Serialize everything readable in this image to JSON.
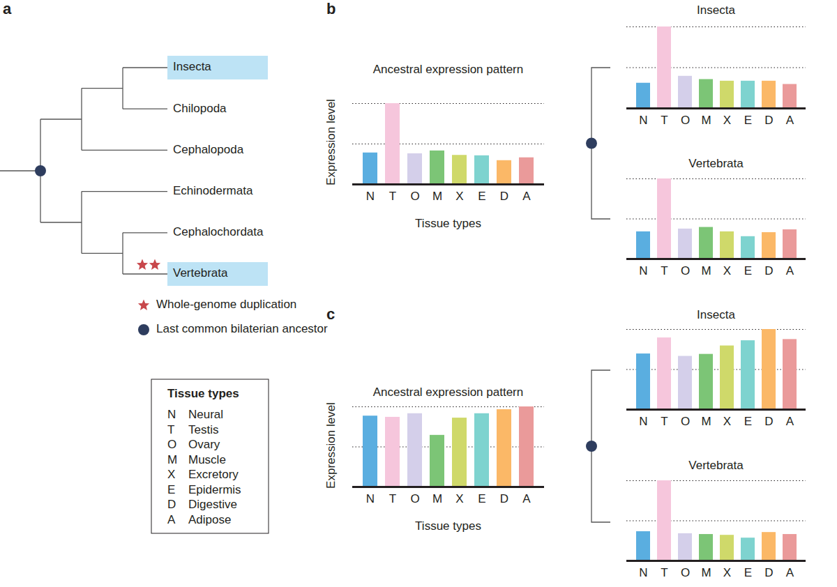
{
  "panel_labels": [
    "a",
    "b",
    "c"
  ],
  "tree": {
    "marker": "circle",
    "children": [
      {
        "children": [
          {
            "children": [
              {
                "label": "Insecta",
                "highlight": true
              },
              {
                "label": "Chilopoda"
              }
            ]
          },
          {
            "label": "Cephalopoda"
          }
        ]
      },
      {
        "children": [
          {
            "label": "Echinodermata"
          },
          {
            "children": [
              {
                "label": "Cephalochordata"
              },
              {
                "label": "Vertebrata",
                "highlight": true,
                "whole_genome_duplications": 2
              }
            ]
          }
        ]
      }
    ]
  },
  "tree_legend": [
    {
      "marker": "star",
      "label": "Whole-genome duplication"
    },
    {
      "marker": "circle",
      "label": "Last common bilaterian ancestor"
    }
  ],
  "tissue_legend": {
    "title": "Tissue types",
    "rows": [
      [
        "N",
        "Neural"
      ],
      [
        "T",
        "Testis"
      ],
      [
        "O",
        "Ovary"
      ],
      [
        "M",
        "Muscle"
      ],
      [
        "X",
        "Excretory"
      ],
      [
        "E",
        "Epidermis"
      ],
      [
        "D",
        "Digestive"
      ],
      [
        "A",
        "Adipose"
      ]
    ]
  },
  "chart_data": [
    {
      "type": "bar",
      "title": "Ancestral expression pattern",
      "xlabel": "Tissue types",
      "ylabel": "Expression level",
      "categories": [
        "N",
        "T",
        "O",
        "M",
        "X",
        "E",
        "D",
        "A"
      ],
      "values": [
        0.78,
        2.0,
        0.76,
        0.83,
        0.72,
        0.71,
        0.59,
        0.66
      ],
      "colors": [
        "#5aaee0",
        "#f6c6dc",
        "#d4cfea",
        "#7cc576",
        "#cfd96a",
        "#7ed3cf",
        "#fbb867",
        "#ea9a9a"
      ],
      "ylim": [
        0,
        2
      ],
      "yticks": [
        1,
        2
      ],
      "grid": true,
      "tick_labels": "x"
    },
    {
      "type": "bar",
      "title": "Insecta",
      "categories": [
        "N",
        "T",
        "O",
        "M",
        "X",
        "E",
        "D",
        "A"
      ],
      "values": [
        0.62,
        2.0,
        0.79,
        0.71,
        0.67,
        0.67,
        0.67,
        0.59
      ],
      "colors": [
        "#5aaee0",
        "#f6c6dc",
        "#d4cfea",
        "#7cc576",
        "#cfd96a",
        "#7ed3cf",
        "#fbb867",
        "#ea9a9a"
      ],
      "ylim": [
        0,
        2
      ],
      "yticks": [
        1,
        2
      ],
      "grid": true,
      "tick_labels": "x"
    },
    {
      "type": "bar",
      "title": "Vertebrata",
      "categories": [
        "N",
        "T",
        "O",
        "M",
        "X",
        "E",
        "D",
        "A"
      ],
      "values": [
        0.68,
        2.0,
        0.75,
        0.79,
        0.68,
        0.56,
        0.66,
        0.73
      ],
      "colors": [
        "#5aaee0",
        "#f6c6dc",
        "#d4cfea",
        "#7cc576",
        "#cfd96a",
        "#7ed3cf",
        "#fbb867",
        "#ea9a9a"
      ],
      "ylim": [
        0,
        2
      ],
      "yticks": [
        1,
        2
      ],
      "grid": true,
      "tick_labels": "x"
    },
    {
      "type": "bar",
      "title": "Ancestral expression pattern",
      "xlabel": "Tissue types",
      "ylabel": "Expression level",
      "categories": [
        "N",
        "T",
        "O",
        "M",
        "X",
        "E",
        "D",
        "A"
      ],
      "values": [
        1.77,
        1.74,
        1.83,
        1.29,
        1.72,
        1.83,
        1.93,
        2.0
      ],
      "colors": [
        "#5aaee0",
        "#f6c6dc",
        "#d4cfea",
        "#7cc576",
        "#cfd96a",
        "#7ed3cf",
        "#fbb867",
        "#ea9a9a"
      ],
      "ylim": [
        0,
        2
      ],
      "yticks": [
        1,
        2
      ],
      "grid": true,
      "tick_labels": "x"
    },
    {
      "type": "bar",
      "title": "Insecta",
      "categories": [
        "N",
        "T",
        "O",
        "M",
        "X",
        "E",
        "D",
        "A"
      ],
      "values": [
        1.39,
        1.79,
        1.33,
        1.38,
        1.59,
        1.72,
        2.0,
        1.75
      ],
      "colors": [
        "#5aaee0",
        "#f6c6dc",
        "#d4cfea",
        "#7cc576",
        "#cfd96a",
        "#7ed3cf",
        "#fbb867",
        "#ea9a9a"
      ],
      "ylim": [
        0,
        2
      ],
      "yticks": [
        1,
        2
      ],
      "grid": true,
      "tick_labels": "x"
    },
    {
      "type": "bar",
      "title": "Vertebrata",
      "categories": [
        "N",
        "T",
        "O",
        "M",
        "X",
        "E",
        "D",
        "A"
      ],
      "values": [
        0.73,
        2.0,
        0.68,
        0.66,
        0.64,
        0.57,
        0.71,
        0.66
      ],
      "colors": [
        "#5aaee0",
        "#f6c6dc",
        "#d4cfea",
        "#7cc576",
        "#cfd96a",
        "#7ed3cf",
        "#fbb867",
        "#ea9a9a"
      ],
      "ylim": [
        0,
        2
      ],
      "yticks": [
        1,
        2
      ],
      "grid": true,
      "tick_labels": "x"
    }
  ]
}
